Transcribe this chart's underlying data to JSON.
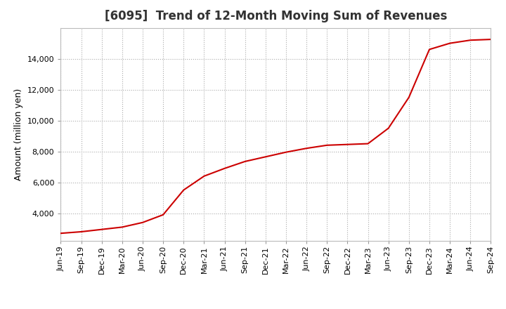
{
  "title": "[6095]  Trend of 12-Month Moving Sum of Revenues",
  "ylabel": "Amount (million yen)",
  "line_color": "#cc0000",
  "bg_color": "#ffffff",
  "plot_bg_color": "#ffffff",
  "grid_color": "#aaaaaa",
  "title_color": "#333333",
  "ylim": [
    2200,
    16000
  ],
  "yticks": [
    4000,
    6000,
    8000,
    10000,
    12000,
    14000
  ],
  "values": [
    2700,
    2800,
    2950,
    3100,
    3400,
    3900,
    5500,
    6400,
    6900,
    7350,
    7650,
    7950,
    8200,
    8400,
    8450,
    8500,
    9500,
    11500,
    14600,
    15000,
    15200,
    15250
  ],
  "xtick_labels": [
    "Jun-19",
    "Sep-19",
    "Dec-19",
    "Mar-20",
    "Jun-20",
    "Sep-20",
    "Dec-20",
    "Mar-21",
    "Jun-21",
    "Sep-21",
    "Dec-21",
    "Mar-22",
    "Jun-22",
    "Sep-22",
    "Dec-22",
    "Mar-23",
    "Jun-23",
    "Sep-23",
    "Dec-23",
    "Mar-24",
    "Jun-24",
    "Sep-24"
  ],
  "title_fontsize": 12,
  "label_fontsize": 9,
  "tick_fontsize": 8
}
